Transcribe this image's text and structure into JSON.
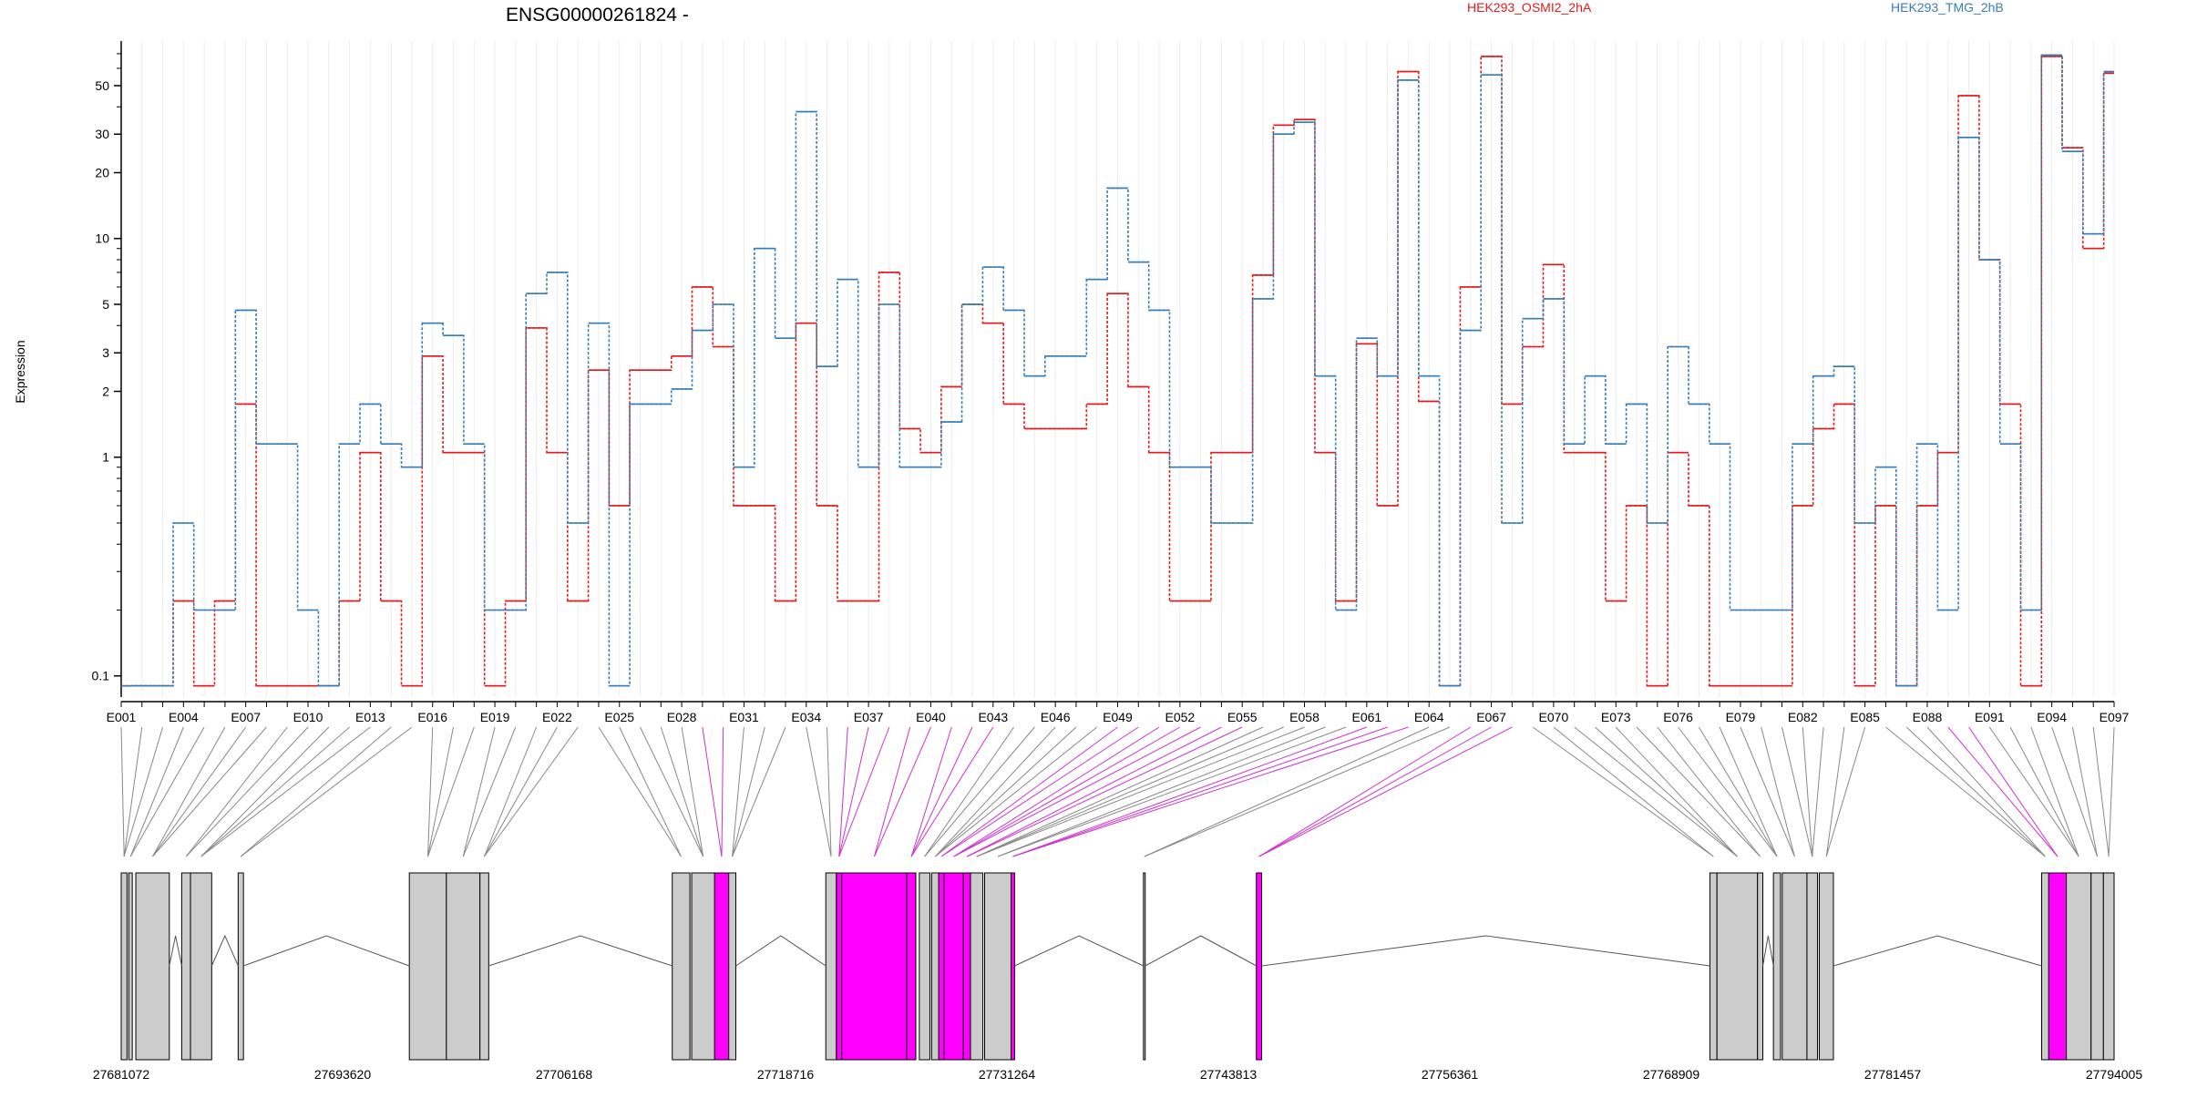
{
  "chart_data": {
    "type": "line",
    "title": "ENSG00000261824 -",
    "ylabel": "Expression",
    "xlabel": "",
    "y_scale": "log",
    "y_ticks": [
      0.1,
      1,
      2,
      3,
      5,
      10,
      20,
      30,
      50
    ],
    "ylim": [
      0.08,
      80
    ],
    "grid": "light vertical lines at each exon",
    "legend_placement": "top",
    "colors": {
      "HEK293_OSMI2_2hA": "#e41a1c",
      "HEK293_TMG_2hB": "#377eb8",
      "exon_highlight": "#ff00ff",
      "exon_box": "#cccccc"
    },
    "exon_tick_labels": [
      "E001",
      "E004",
      "E007",
      "E010",
      "E013",
      "E016",
      "E019",
      "E022",
      "E025",
      "E028",
      "E031",
      "E034",
      "E037",
      "E040",
      "E043",
      "E046",
      "E049",
      "E052",
      "E055",
      "E058",
      "E061",
      "E064",
      "E067",
      "E070",
      "E073",
      "E076",
      "E079",
      "E082",
      "E085",
      "E088",
      "E091",
      "E094",
      "E097"
    ],
    "exons": [
      "E001",
      "E002",
      "E003",
      "E004",
      "E005",
      "E006",
      "E007",
      "E008",
      "E009",
      "E010",
      "E011",
      "E012",
      "E013",
      "E014",
      "E015",
      "E016",
      "E017",
      "E018",
      "E019",
      "E020",
      "E021",
      "E022",
      "E023",
      "E024",
      "E025",
      "E026",
      "E027",
      "E028",
      "E029",
      "E030",
      "E031",
      "E032",
      "E033",
      "E034",
      "E035",
      "E036",
      "E037",
      "E038",
      "E039",
      "E040",
      "E041",
      "E042",
      "E043",
      "E044",
      "E045",
      "E046",
      "E047",
      "E048",
      "E049",
      "E050",
      "E051",
      "E052",
      "E053",
      "E054",
      "E055",
      "E056",
      "E057",
      "E058",
      "E059",
      "E060",
      "E061",
      "E062",
      "E063",
      "E064",
      "E065",
      "E066",
      "E067",
      "E068",
      "E069",
      "E070",
      "E071",
      "E072",
      "E073",
      "E074",
      "E075",
      "E076",
      "E077",
      "E078",
      "E079",
      "E080",
      "E081",
      "E082",
      "E083",
      "E084",
      "E085",
      "E086",
      "E087",
      "E088",
      "E089",
      "E090",
      "E091",
      "E092",
      "E093",
      "E094",
      "E095",
      "E096",
      "E097"
    ],
    "series": [
      {
        "name": "HEK293_OSMI2_2hA",
        "values": [
          0.09,
          0.09,
          0.09,
          0.22,
          0.09,
          0.22,
          1.75,
          0.09,
          0.09,
          0.09,
          0.09,
          0.22,
          1.05,
          0.22,
          0.09,
          2.9,
          1.05,
          1.05,
          0.09,
          0.22,
          3.9,
          1.05,
          0.22,
          2.5,
          0.6,
          2.5,
          2.5,
          2.9,
          6.0,
          3.2,
          0.6,
          0.6,
          0.22,
          4.1,
          0.6,
          0.22,
          0.22,
          7.0,
          1.35,
          1.05,
          2.1,
          5.0,
          4.1,
          1.75,
          1.35,
          1.35,
          1.35,
          1.75,
          5.6,
          2.1,
          1.05,
          0.22,
          0.22,
          1.05,
          1.05,
          6.8,
          33,
          35,
          1.05,
          0.22,
          3.3,
          0.6,
          58,
          1.8,
          0.09,
          6.0,
          68,
          1.75,
          3.2,
          7.6,
          1.05,
          1.05,
          0.22,
          0.6,
          0.09,
          1.05,
          0.6,
          0.09,
          0.09,
          0.09,
          0.09,
          0.6,
          1.35,
          1.75,
          0.09,
          0.6,
          0.09,
          0.6,
          1.05,
          45,
          8.0,
          1.75,
          0.09,
          68,
          26,
          9.0,
          57
        ]
      },
      {
        "name": "HEK293_TMG_2hB",
        "values": [
          0.09,
          0.09,
          0.09,
          0.5,
          0.2,
          0.2,
          4.7,
          1.15,
          1.15,
          0.2,
          0.09,
          1.15,
          1.75,
          1.15,
          0.9,
          4.1,
          3.6,
          1.15,
          0.2,
          0.2,
          5.6,
          7.0,
          0.5,
          4.1,
          0.09,
          1.75,
          1.75,
          2.05,
          3.8,
          5.0,
          0.9,
          9.0,
          3.5,
          38,
          2.6,
          6.5,
          0.9,
          5.0,
          0.9,
          0.9,
          1.45,
          5.0,
          7.4,
          4.7,
          2.35,
          2.9,
          2.9,
          6.5,
          17,
          7.8,
          4.7,
          0.9,
          0.9,
          0.5,
          0.5,
          5.3,
          30,
          34,
          2.35,
          0.2,
          3.5,
          2.35,
          53,
          2.35,
          0.09,
          3.8,
          56,
          0.5,
          4.3,
          5.3,
          1.15,
          2.35,
          1.15,
          1.75,
          0.5,
          3.2,
          1.75,
          1.15,
          0.2,
          0.2,
          0.2,
          1.15,
          2.35,
          2.6,
          0.5,
          0.9,
          0.09,
          1.15,
          0.2,
          29,
          8.0,
          1.15,
          0.2,
          69,
          25,
          10.5,
          58
        ]
      }
    ],
    "genomic_axis_labels": [
      "27681072",
      "27693620",
      "27706168",
      "27718716",
      "27731264",
      "27743813",
      "27756361",
      "27768909",
      "27781457",
      "27794005"
    ],
    "genomic_range": [
      27681072,
      27794005
    ],
    "exon_blocks": [
      {
        "start": 27681072,
        "end": 27681400,
        "highlight": false
      },
      {
        "start": 27681500,
        "end": 27681700,
        "highlight": false
      },
      {
        "start": 27681900,
        "end": 27683800,
        "highlight": false
      },
      {
        "start": 27684500,
        "end": 27685000,
        "highlight": false
      },
      {
        "start": 27685000,
        "end": 27686200,
        "highlight": false
      },
      {
        "start": 27687700,
        "end": 27688000,
        "highlight": false
      },
      {
        "start": 27697400,
        "end": 27699500,
        "highlight": false
      },
      {
        "start": 27699500,
        "end": 27701400,
        "highlight": false
      },
      {
        "start": 27701400,
        "end": 27701900,
        "highlight": false
      },
      {
        "start": 27712300,
        "end": 27713300,
        "highlight": false
      },
      {
        "start": 27713400,
        "end": 27714700,
        "highlight": false
      },
      {
        "start": 27714700,
        "end": 27715500,
        "highlight": true
      },
      {
        "start": 27715500,
        "end": 27715900,
        "highlight": false
      },
      {
        "start": 27721000,
        "end": 27721600,
        "highlight": false
      },
      {
        "start": 27721600,
        "end": 27721900,
        "highlight": true
      },
      {
        "start": 27721900,
        "end": 27725600,
        "highlight": true
      },
      {
        "start": 27725600,
        "end": 27726100,
        "highlight": true
      },
      {
        "start": 27726300,
        "end": 27726900,
        "highlight": false
      },
      {
        "start": 27727000,
        "end": 27727400,
        "highlight": false
      },
      {
        "start": 27727400,
        "end": 27727700,
        "highlight": true
      },
      {
        "start": 27727700,
        "end": 27728800,
        "highlight": true
      },
      {
        "start": 27728800,
        "end": 27729200,
        "highlight": true
      },
      {
        "start": 27729200,
        "end": 27729900,
        "highlight": false
      },
      {
        "start": 27730000,
        "end": 27731500,
        "highlight": false
      },
      {
        "start": 27731500,
        "end": 27731700,
        "highlight": true
      },
      {
        "start": 27739000,
        "end": 27739100,
        "highlight": false
      },
      {
        "start": 27745400,
        "end": 27745700,
        "highlight": true
      },
      {
        "start": 27771100,
        "end": 27771500,
        "highlight": false
      },
      {
        "start": 27771500,
        "end": 27773800,
        "highlight": false
      },
      {
        "start": 27773800,
        "end": 27774100,
        "highlight": false
      },
      {
        "start": 27774700,
        "end": 27775100,
        "highlight": false
      },
      {
        "start": 27775200,
        "end": 27776600,
        "highlight": false
      },
      {
        "start": 27776600,
        "end": 27777200,
        "highlight": false
      },
      {
        "start": 27777300,
        "end": 27778100,
        "highlight": false
      },
      {
        "start": 27789900,
        "end": 27790300,
        "highlight": false
      },
      {
        "start": 27790300,
        "end": 27791300,
        "highlight": true
      },
      {
        "start": 27791300,
        "end": 27792700,
        "highlight": false
      },
      {
        "start": 27792700,
        "end": 27793400,
        "highlight": false
      },
      {
        "start": 27793400,
        "end": 27794005,
        "highlight": false
      }
    ]
  }
}
